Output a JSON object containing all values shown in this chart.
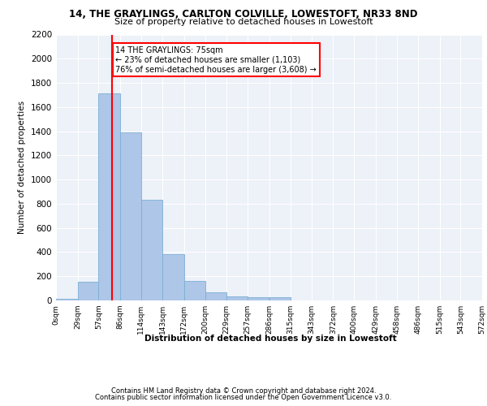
{
  "title1": "14, THE GRAYLINGS, CARLTON COLVILLE, LOWESTOFT, NR33 8ND",
  "title2": "Size of property relative to detached houses in Lowestoft",
  "xlabel": "Distribution of detached houses by size in Lowestoft",
  "ylabel": "Number of detached properties",
  "bar_color": "#aec6e8",
  "bar_edge_color": "#7bafd4",
  "background_color": "#edf1f8",
  "grid_color": "#ffffff",
  "footer1": "Contains HM Land Registry data © Crown copyright and database right 2024.",
  "footer2": "Contains public sector information licensed under the Open Government Licence v3.0.",
  "annotation_text": "14 THE GRAYLINGS: 75sqm\n← 23% of detached houses are smaller (1,103)\n76% of semi-detached houses are larger (3,608) →",
  "property_line_x": 75,
  "bin_edges": [
    0,
    29,
    57,
    86,
    114,
    143,
    172,
    200,
    229,
    257,
    286,
    315,
    343,
    372,
    400,
    429,
    458,
    486,
    515,
    543,
    572
  ],
  "bin_labels": [
    "0sqm",
    "29sqm",
    "57sqm",
    "86sqm",
    "114sqm",
    "143sqm",
    "172sqm",
    "200sqm",
    "229sqm",
    "257sqm",
    "286sqm",
    "315sqm",
    "343sqm",
    "372sqm",
    "400sqm",
    "429sqm",
    "458sqm",
    "486sqm",
    "515sqm",
    "543sqm",
    "572sqm"
  ],
  "bar_heights": [
    15,
    155,
    1710,
    1390,
    835,
    385,
    160,
    65,
    35,
    28,
    28,
    0,
    0,
    0,
    0,
    0,
    0,
    0,
    0,
    0
  ],
  "ylim": [
    0,
    2200
  ],
  "yticks": [
    0,
    200,
    400,
    600,
    800,
    1000,
    1200,
    1400,
    1600,
    1800,
    2000,
    2200
  ]
}
